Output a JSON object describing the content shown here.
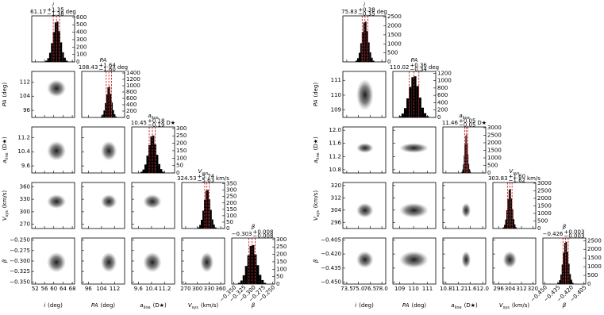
{
  "chart_data": [
    {
      "type": "corner",
      "parameters": [
        {
          "symbol": "i",
          "axis_unit": "(deg)",
          "title_unit": "deg",
          "stats": {
            "values": [
              61.17,
              1.35,
              1.38
            ],
            "value_labels": [
              "61.17",
              "+1.35",
              "−1.38"
            ]
          },
          "lim": [
            50.5,
            69
          ],
          "ticks": [
            52,
            56,
            60,
            64,
            68
          ],
          "hist": {
            "bins": [
              56.4,
              57.2,
              58.0,
              58.8,
              59.6,
              60.4,
              61.2,
              62.0,
              62.8,
              63.6,
              64.4,
              65.2,
              66.0
            ],
            "counts": [
              17,
              50,
              123,
              252,
              403,
              532,
              543,
              414,
              263,
              129,
              56,
              17
            ],
            "ylim": [
              0,
              620
            ],
            "yticks": [
              0,
              100,
              200,
              300,
              400,
              500,
              600
            ]
          }
        },
        {
          "symbol": "PA",
          "axis_unit": "(deg)",
          "title_unit": "deg",
          "stats": {
            "values": [
              108.43,
              1.64,
              1.6
            ],
            "value_labels": [
              "108.43",
              "+1.64",
              "−1.60"
            ]
          },
          "lim": [
            92,
            118
          ],
          "ticks": [
            96,
            104,
            112
          ],
          "hist": {
            "bins": [
              103.6,
              104.4,
              105.2,
              106.0,
              106.8,
              107.6,
              108.4,
              109.2,
              110.0,
              110.8,
              111.6,
              112.4,
              113.2
            ],
            "counts": [
              30,
              90,
              220,
              450,
              720,
              950,
              970,
              740,
              470,
              230,
              100,
              30
            ],
            "ylim": [
              0,
              1450
            ],
            "yticks": [
              0,
              200,
              400,
              600,
              800,
              1000,
              1200,
              1400
            ]
          }
        },
        {
          "symbol": "a",
          "sub": "line",
          "axis_unit": "(D★)",
          "title_unit": "D★",
          "stats": {
            "values": [
              10.45,
              0.18,
              0.19
            ],
            "value_labels": [
              "10.45",
              "+0.18",
              "−0.19"
            ]
          },
          "lim": [
            9.2,
            11.8
          ],
          "ticks": [
            9.6,
            10.4,
            11.2
          ],
          "hist": {
            "bins": [
              9.73,
              9.85,
              9.97,
              10.09,
              10.21,
              10.33,
              10.45,
              10.57,
              10.69,
              10.81,
              10.93,
              11.05,
              11.17
            ],
            "counts": [
              8,
              23,
              57,
              117,
              187,
              247,
              252,
              192,
              122,
              60,
              26,
              8
            ],
            "ylim": [
              0,
              310
            ],
            "yticks": [
              0,
              50,
              100,
              150,
              200,
              250,
              300
            ]
          }
        },
        {
          "symbol": "V",
          "sub": "sys",
          "axis_unit": "(km/s)",
          "title_unit": "km/s",
          "stats": {
            "values": [
              324.53,
              5.74,
              5.63
            ],
            "value_labels": [
              "324.53",
              "+5.74",
              "−5.63"
            ]
          },
          "lim": [
            260,
            370
          ],
          "ticks": [
            270,
            300,
            330,
            360
          ],
          "hist": {
            "bins": [
              301,
              305,
              309,
              313,
              317,
              321,
              325,
              329,
              333,
              337,
              341,
              345,
              349
            ],
            "counts": [
              9,
              28,
              68,
              140,
              223,
              295,
              301,
              229,
              146,
              71,
              31,
              9
            ],
            "ylim": [
              0,
              360
            ],
            "yticks": [
              0,
              50,
              100,
              150,
              200,
              250,
              300,
              350
            ]
          }
        },
        {
          "symbol": "β",
          "stats": {
            "values": [
              -0.303,
              0.008,
              0.008
            ],
            "value_labels": [
              "−0.303",
              "+0.008",
              "−0.008"
            ]
          },
          "lim": [
            -0.355,
            -0.245
          ],
          "ticks": [
            {
              "value": -0.35,
              "label": "−0.350"
            },
            {
              "value": -0.325,
              "label": "−0.325"
            },
            {
              "value": -0.3,
              "label": "−0.300"
            },
            {
              "value": -0.275,
              "label": "−0.275"
            },
            {
              "value": -0.25,
              "label": "−0.250"
            }
          ],
          "hist": {
            "bins": [
              -0.339,
              -0.333,
              -0.327,
              -0.321,
              -0.315,
              -0.309,
              -0.303,
              -0.297,
              -0.291,
              -0.285,
              -0.279,
              -0.273,
              -0.267
            ],
            "counts": [
              8,
              24,
              59,
              122,
              194,
              257,
              262,
              200,
              127,
              62,
              27,
              8
            ],
            "ylim": [
              0,
              310
            ],
            "yticks": [
              0,
              50,
              100,
              150,
              200,
              250,
              300
            ]
          }
        }
      ]
    },
    {
      "type": "corner",
      "parameters": [
        {
          "symbol": "i",
          "axis_unit": "(deg)",
          "title_unit": "deg",
          "stats": {
            "values": [
              75.83,
              0.38,
              0.35
            ],
            "value_labels": [
              "75.83",
              "+0.38",
              "−0.35"
            ]
          },
          "lim": [
            73.0,
            78.5
          ],
          "ticks": [
            73.5,
            {
              "value": 75,
              "label": "75.0"
            },
            76.5,
            {
              "value": 78,
              "label": "78.0"
            }
          ],
          "hist": {
            "bins": [
              74.63,
              74.83,
              75.03,
              75.23,
              75.43,
              75.63,
              75.83,
              76.03,
              76.23,
              76.43,
              76.63,
              76.83,
              77.03
            ],
            "counts": [
              69,
              207,
              506,
              1035,
              1656,
              2185,
              2231,
              1702,
              1081,
              529,
              230,
              69
            ],
            "ylim": [
              0,
              2550
            ],
            "yticks": [
              0,
              500,
              1000,
              1500,
              2000,
              2500
            ]
          }
        },
        {
          "symbol": "PA",
          "axis_unit": "(deg)",
          "title_unit": "deg",
          "stats": {
            "values": [
              110.02,
              0.36,
              0.34
            ],
            "value_labels": [
              "110.02",
              "+0.36",
              "−0.34"
            ]
          },
          "lim": [
            108.5,
            111.6
          ],
          "ticks": [
            109,
            110,
            111
          ],
          "hist": {
            "bins": [
              108.94,
              109.12,
              109.3,
              109.48,
              109.66,
              109.84,
              110.02,
              110.2,
              110.38,
              110.56,
              110.74,
              110.92,
              111.1
            ],
            "counts": [
              35,
              104,
              253,
              518,
              828,
              1093,
              1116,
              851,
              541,
              265,
              115,
              35
            ],
            "ylim": [
              0,
              1250
            ],
            "yticks": [
              0,
              200,
              400,
              600,
              800,
              1000,
              1200
            ]
          }
        },
        {
          "symbol": "a",
          "sub": "line",
          "axis_unit": "(D★)",
          "title_unit": "D★",
          "stats": {
            "values": [
              11.46,
              0.05,
              0.05
            ],
            "value_labels": [
              "11.46",
              "+0.05",
              "−0.05"
            ]
          },
          "lim": [
            10.7,
            12.1
          ],
          "ticks": [
            10.8,
            11.2,
            11.6,
            {
              "value": 12,
              "label": "12.0"
            }
          ],
          "hist": {
            "bins": [
              11.31,
              11.335,
              11.36,
              11.385,
              11.41,
              11.435,
              11.46,
              11.485,
              11.51,
              11.535,
              11.56,
              11.585,
              11.61
            ],
            "counts": [
              78,
              234,
              572,
              1170,
              1872,
              2470,
              2522,
              1924,
              1222,
              598,
              260,
              78
            ],
            "ylim": [
              0,
              3050
            ],
            "yticks": [
              0,
              500,
              1000,
              1500,
              2000,
              2500,
              3000
            ]
          }
        },
        {
          "symbol": "V",
          "sub": "sys",
          "axis_unit": "(km/s)",
          "title_unit": "km/s",
          "stats": {
            "values": [
              303.83,
              1.6,
              1.62
            ],
            "value_labels": [
              "303.83",
              "+1.60",
              "−1.62"
            ]
          },
          "lim": [
            292,
            322
          ],
          "ticks": [
            296,
            304,
            312,
            320
          ],
          "hist": {
            "bins": [
              299.03,
              299.83,
              300.63,
              301.43,
              302.23,
              303.03,
              303.83,
              304.63,
              305.43,
              306.23,
              307.03,
              307.83,
              308.63
            ],
            "counts": [
              81,
              243,
              594,
              1215,
              1944,
              2565,
              2619,
              1998,
              1269,
              621,
              270,
              81
            ],
            "ylim": [
              0,
              3050
            ],
            "yticks": [
              0,
              500,
              1000,
              1500,
              2000,
              2500,
              3000
            ]
          }
        },
        {
          "symbol": "β",
          "stats": {
            "values": [
              -0.426,
              0.003,
              0.003
            ],
            "value_labels": [
              "−0.426",
              "+0.003",
              "−0.003"
            ]
          },
          "lim": [
            -0.452,
            -0.403
          ],
          "ticks": [
            {
              "value": -0.45,
              "label": "−0.450"
            },
            {
              "value": -0.435,
              "label": "−0.435"
            },
            {
              "value": -0.42,
              "label": "−0.420"
            },
            {
              "value": -0.405,
              "label": "−0.405"
            }
          ],
          "hist": {
            "bins": [
              -0.435,
              -0.4335,
              -0.432,
              -0.4305,
              -0.429,
              -0.4275,
              -0.426,
              -0.4245,
              -0.423,
              -0.4215,
              -0.42,
              -0.4185,
              -0.417
            ],
            "counts": [
              75,
              225,
              550,
              1125,
              1800,
              2375,
              2425,
              1850,
              1175,
              575,
              250,
              75
            ],
            "ylim": [
              0,
              2650
            ],
            "yticks": [
              0,
              500,
              1000,
              1500,
              2000,
              2500
            ]
          }
        }
      ]
    }
  ]
}
